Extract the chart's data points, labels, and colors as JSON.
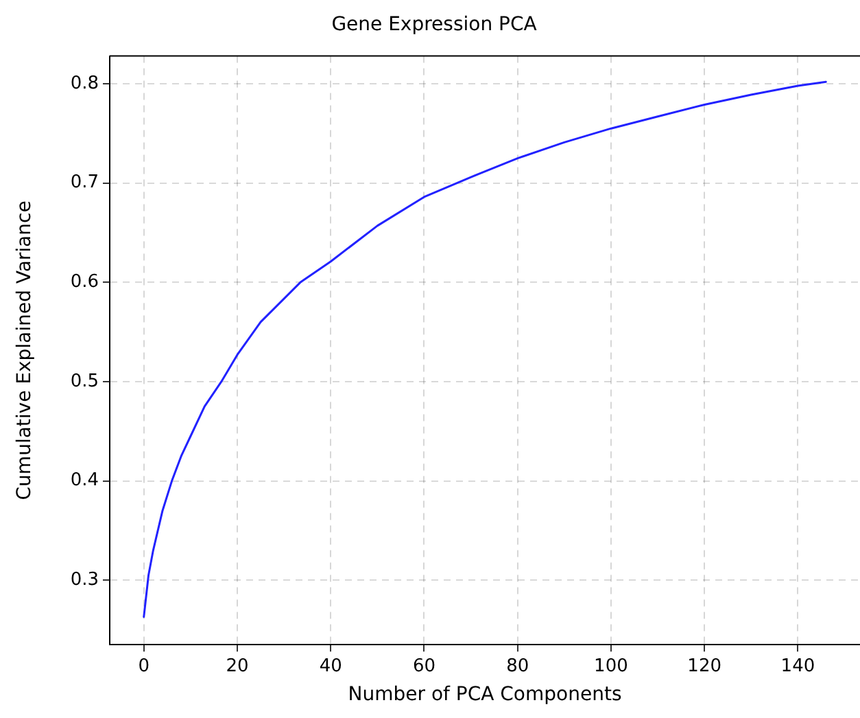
{
  "chart_data": {
    "type": "line",
    "title": "Gene Expression PCA",
    "xlabel": "Number of PCA Components",
    "ylabel": "Cumulative Explained Variance",
    "x": [
      0,
      1,
      2,
      3,
      4,
      6,
      8,
      10,
      13,
      16.6,
      20,
      25,
      33.5,
      40,
      50,
      60,
      70,
      80,
      90,
      100,
      110,
      120,
      130,
      140,
      146
    ],
    "series": [
      {
        "color": "#2222ff",
        "values": [
          0.263,
          0.305,
          0.33,
          0.35,
          0.37,
          0.4,
          0.425,
          0.445,
          0.475,
          0.5,
          0.527,
          0.56,
          0.6,
          0.621,
          0.657,
          0.686,
          0.706,
          0.725,
          0.741,
          0.755,
          0.767,
          0.779,
          0.789,
          0.798,
          0.802
        ]
      }
    ],
    "xlim": [
      -7.3,
      153.3
    ],
    "ylim": [
      0.235,
      0.828
    ],
    "xticks": [
      0,
      20,
      40,
      60,
      80,
      100,
      120,
      140
    ],
    "yticks": [
      0.3,
      0.4,
      0.5,
      0.6,
      0.7,
      0.8
    ],
    "grid": true,
    "legend": false,
    "marker": "none",
    "line_style": "solid"
  }
}
